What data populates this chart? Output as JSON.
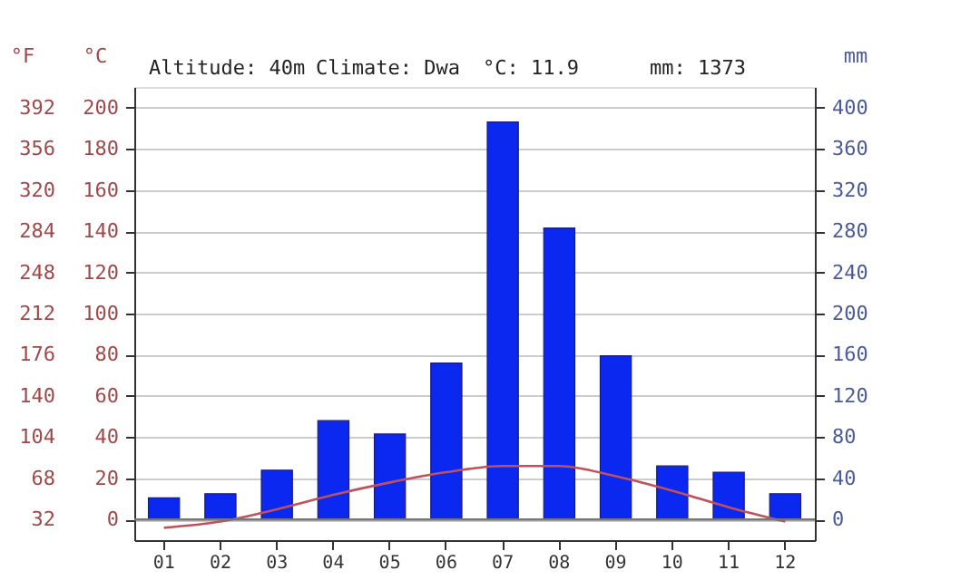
{
  "chart_data": {
    "type": "bar",
    "categories": [
      "01",
      "02",
      "03",
      "04",
      "05",
      "06",
      "07",
      "08",
      "09",
      "10",
      "11",
      "12"
    ],
    "series": [
      {
        "axis": "y2",
        "color": "#0a28f0",
        "values": [
          21,
          25,
          48,
          96,
          83,
          152,
          386,
          283,
          159,
          52,
          46,
          25
        ]
      },
      {
        "type": "line",
        "axis": "y",
        "color": "#c0505a",
        "values": [
          -4,
          -1,
          5,
          12,
          18,
          23,
          26,
          26,
          21,
          14,
          6,
          -1
        ]
      }
    ],
    "ylabel": "°C",
    "ylim": [
      -10,
      210
    ],
    "yticks": [
      0,
      20,
      40,
      60,
      80,
      100,
      120,
      140,
      160,
      180,
      200
    ],
    "y2label": "mm",
    "y2lim": [
      -20,
      420
    ],
    "y2ticks": [
      0,
      40,
      80,
      120,
      160,
      200,
      240,
      280,
      320,
      360,
      400
    ],
    "y3label": "°F",
    "y3lim": [
      14,
      410
    ],
    "y3ticks": [
      32,
      68,
      104,
      140,
      176,
      212,
      248,
      284,
      320,
      356,
      392
    ],
    "annotations": [
      "Altitude: 40m",
      "Climate: Dwa",
      "°C: 11.9",
      "mm: 1373"
    ],
    "grid": "y"
  }
}
